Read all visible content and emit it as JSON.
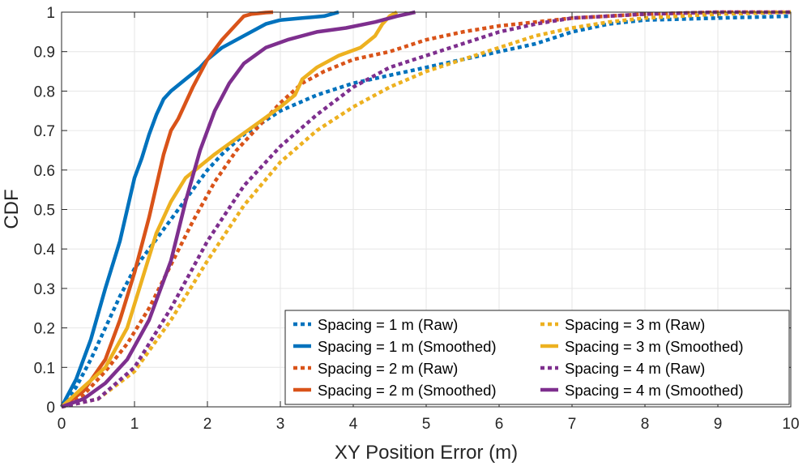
{
  "chart_data": {
    "type": "line",
    "title": "",
    "xlabel": "XY Position Error (m)",
    "ylabel": "CDF",
    "xlim": [
      0,
      10
    ],
    "ylim": [
      0,
      1
    ],
    "xticks": [
      "0",
      "1",
      "2",
      "3",
      "4",
      "5",
      "6",
      "7",
      "8",
      "9",
      "10"
    ],
    "yticks": [
      "0",
      "0.1",
      "0.2",
      "0.3",
      "0.4",
      "0.5",
      "0.6",
      "0.7",
      "0.8",
      "0.9",
      "1"
    ],
    "grid": true,
    "legend_position": "bottom-right",
    "series": [
      {
        "name": "Spacing = 1 m (Raw)",
        "color": "#0072BD",
        "style": "dotted",
        "x": [
          0,
          0.2,
          0.4,
          0.6,
          0.8,
          1.0,
          1.2,
          1.4,
          1.6,
          1.8,
          2.0,
          2.2,
          2.5,
          3.0,
          3.5,
          4.0,
          4.5,
          5.0,
          5.5,
          6.0,
          6.5,
          7.0,
          7.5,
          8.0,
          9.0,
          10.0
        ],
        "y": [
          0,
          0.05,
          0.12,
          0.2,
          0.28,
          0.35,
          0.4,
          0.45,
          0.5,
          0.55,
          0.6,
          0.64,
          0.69,
          0.75,
          0.79,
          0.82,
          0.84,
          0.86,
          0.88,
          0.9,
          0.92,
          0.95,
          0.97,
          0.98,
          0.985,
          0.99
        ]
      },
      {
        "name": "Spacing = 1 m (Smoothed)",
        "color": "#0072BD",
        "style": "solid",
        "x": [
          0,
          0.2,
          0.4,
          0.6,
          0.8,
          0.9,
          1.0,
          1.1,
          1.2,
          1.3,
          1.4,
          1.5,
          1.7,
          1.9,
          2.0,
          2.2,
          2.5,
          2.8,
          3.0,
          3.3,
          3.6,
          3.8
        ],
        "y": [
          0,
          0.07,
          0.17,
          0.3,
          0.42,
          0.5,
          0.58,
          0.63,
          0.69,
          0.74,
          0.78,
          0.8,
          0.83,
          0.86,
          0.88,
          0.91,
          0.94,
          0.97,
          0.98,
          0.985,
          0.99,
          1.0
        ]
      },
      {
        "name": "Spacing = 2 m (Raw)",
        "color": "#D95319",
        "style": "dotted",
        "x": [
          0,
          0.3,
          0.6,
          0.9,
          1.2,
          1.5,
          1.8,
          2.1,
          2.4,
          2.7,
          3.0,
          3.3,
          3.6,
          4.0,
          4.5,
          5.0,
          5.5,
          6.0,
          6.5,
          7.0,
          8.0,
          9.0,
          10.0
        ],
        "y": [
          0,
          0.03,
          0.09,
          0.16,
          0.25,
          0.36,
          0.47,
          0.57,
          0.65,
          0.71,
          0.77,
          0.82,
          0.85,
          0.88,
          0.9,
          0.93,
          0.95,
          0.965,
          0.975,
          0.985,
          0.995,
          1.0,
          1.0
        ]
      },
      {
        "name": "Spacing = 2 m (Smoothed)",
        "color": "#D95319",
        "style": "solid",
        "x": [
          0,
          0.3,
          0.6,
          0.8,
          1.0,
          1.2,
          1.4,
          1.5,
          1.6,
          1.7,
          1.8,
          2.0,
          2.2,
          2.4,
          2.5,
          2.6,
          2.7,
          2.8,
          2.9
        ],
        "y": [
          0,
          0.04,
          0.12,
          0.22,
          0.34,
          0.48,
          0.64,
          0.7,
          0.73,
          0.77,
          0.81,
          0.88,
          0.93,
          0.97,
          0.99,
          0.995,
          0.997,
          0.999,
          1.0
        ]
      },
      {
        "name": "Spacing = 3 m (Raw)",
        "color": "#EDB120",
        "style": "dotted",
        "x": [
          0,
          0.5,
          1.0,
          1.5,
          2.0,
          2.5,
          3.0,
          3.5,
          4.0,
          4.5,
          5.0,
          5.5,
          6.0,
          6.5,
          7.0,
          7.5,
          8.0,
          9.0,
          10.0
        ],
        "y": [
          0,
          0.02,
          0.09,
          0.22,
          0.37,
          0.51,
          0.62,
          0.7,
          0.76,
          0.81,
          0.85,
          0.88,
          0.91,
          0.94,
          0.96,
          0.975,
          0.985,
          0.995,
          1.0
        ]
      },
      {
        "name": "Spacing = 3 m (Smoothed)",
        "color": "#EDB120",
        "style": "solid",
        "x": [
          0,
          0.3,
          0.6,
          0.9,
          1.1,
          1.3,
          1.5,
          1.7,
          1.9,
          2.1,
          2.4,
          2.7,
          3.0,
          3.2,
          3.3,
          3.5,
          3.8,
          4.1,
          4.3,
          4.4,
          4.5,
          4.6
        ],
        "y": [
          0,
          0.05,
          0.1,
          0.2,
          0.32,
          0.44,
          0.52,
          0.58,
          0.61,
          0.64,
          0.68,
          0.72,
          0.76,
          0.79,
          0.83,
          0.86,
          0.89,
          0.91,
          0.94,
          0.97,
          0.99,
          1.0
        ]
      },
      {
        "name": "Spacing = 4 m (Raw)",
        "color": "#7E2F8E",
        "style": "dotted",
        "x": [
          0,
          0.5,
          1.0,
          1.5,
          2.0,
          2.5,
          3.0,
          3.5,
          4.0,
          4.5,
          5.0,
          5.5,
          6.0,
          6.5,
          7.0,
          7.5,
          8.0,
          9.0,
          10.0
        ],
        "y": [
          0,
          0.02,
          0.1,
          0.25,
          0.42,
          0.56,
          0.66,
          0.74,
          0.81,
          0.86,
          0.89,
          0.92,
          0.95,
          0.97,
          0.985,
          0.99,
          0.995,
          1.0,
          1.0
        ]
      },
      {
        "name": "Spacing = 4 m (Smoothed)",
        "color": "#7E2F8E",
        "style": "solid",
        "x": [
          0,
          0.3,
          0.6,
          0.9,
          1.2,
          1.5,
          1.7,
          1.9,
          2.1,
          2.3,
          2.5,
          2.8,
          3.1,
          3.5,
          3.9,
          4.3,
          4.6,
          4.85
        ],
        "y": [
          0,
          0.02,
          0.06,
          0.12,
          0.22,
          0.37,
          0.52,
          0.65,
          0.75,
          0.82,
          0.87,
          0.91,
          0.93,
          0.95,
          0.96,
          0.975,
          0.99,
          1.0
        ]
      }
    ]
  }
}
